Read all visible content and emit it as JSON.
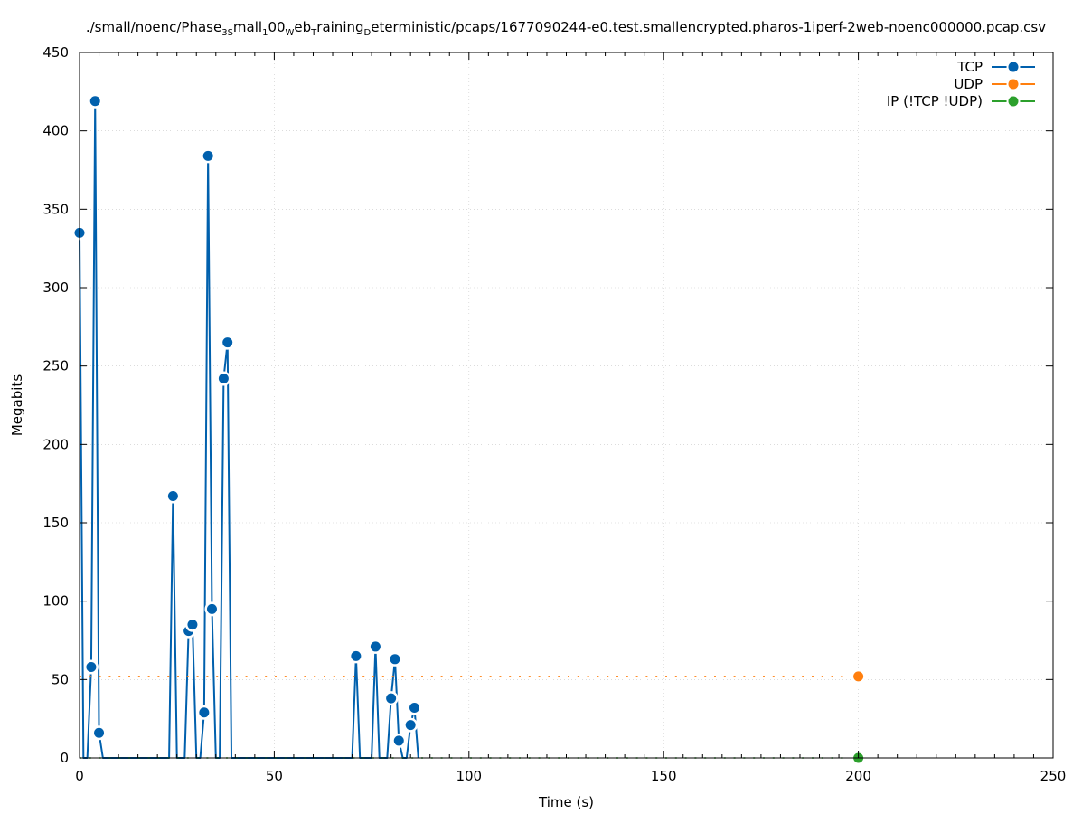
{
  "chart_data": {
    "type": "line",
    "title_parts": [
      {
        "text": "./small/noenc/Phase",
        "sub": false
      },
      {
        "text": "3S",
        "sub": true
      },
      {
        "text": "mall",
        "sub": false
      },
      {
        "text": "1",
        "sub": true
      },
      {
        "text": "00",
        "sub": false
      },
      {
        "text": "W",
        "sub": true
      },
      {
        "text": "eb",
        "sub": false
      },
      {
        "text": "T",
        "sub": true
      },
      {
        "text": "raining",
        "sub": false
      },
      {
        "text": "D",
        "sub": true
      },
      {
        "text": "eterministic/pcaps/1677090244-e0.test.smallencrypted.pharos-1iperf-2web-noenc000000.pcap.csv",
        "sub": false
      }
    ],
    "xlabel": "Time (s)",
    "ylabel": "Megabits",
    "xlim": [
      0,
      250
    ],
    "ylim": [
      0,
      450
    ],
    "xticks": [
      0,
      50,
      100,
      150,
      200,
      250
    ],
    "yticks": [
      0,
      50,
      100,
      150,
      200,
      250,
      300,
      350,
      400,
      450
    ],
    "grid": true,
    "legend_position": "top-right",
    "series": [
      {
        "name": "TCP",
        "color": "#0060ad",
        "style": "solid",
        "points": [
          [
            0,
            335
          ],
          [
            1,
            0
          ],
          [
            2,
            0
          ],
          [
            3,
            58
          ],
          [
            4,
            419
          ],
          [
            5,
            16
          ],
          [
            6,
            0
          ],
          [
            23,
            0
          ],
          [
            24,
            167
          ],
          [
            25,
            0
          ],
          [
            26,
            0
          ],
          [
            27,
            0
          ],
          [
            28,
            81
          ],
          [
            29,
            85
          ],
          [
            30,
            0
          ],
          [
            31,
            0
          ],
          [
            32,
            29
          ],
          [
            33,
            384
          ],
          [
            34,
            95
          ],
          [
            35,
            0
          ],
          [
            36,
            0
          ],
          [
            37,
            242
          ],
          [
            38,
            265
          ],
          [
            39,
            0
          ],
          [
            40,
            0
          ],
          [
            69,
            0
          ],
          [
            70,
            0
          ],
          [
            71,
            65
          ],
          [
            72,
            0
          ],
          [
            73,
            0
          ],
          [
            74,
            0
          ],
          [
            75,
            0
          ],
          [
            76,
            71
          ],
          [
            77,
            0
          ],
          [
            78,
            0
          ],
          [
            79,
            0
          ],
          [
            80,
            38
          ],
          [
            81,
            63
          ],
          [
            82,
            11
          ],
          [
            83,
            0
          ],
          [
            84,
            0
          ],
          [
            85,
            21
          ],
          [
            86,
            32
          ],
          [
            87,
            0
          ]
        ],
        "marker_x": [
          0,
          3,
          4,
          5,
          24,
          28,
          29,
          32,
          33,
          34,
          37,
          38,
          71,
          76,
          80,
          81,
          82,
          85,
          86
        ]
      },
      {
        "name": "UDP",
        "color": "#ff7f0e",
        "style": "dashed",
        "points": [
          [
            0,
            52
          ],
          [
            200,
            52
          ]
        ],
        "marker_x": [
          200
        ]
      },
      {
        "name": "IP (!TCP  !UDP)",
        "color": "#2ca02c",
        "style": "dashed",
        "points": [
          [
            0,
            0
          ],
          [
            200,
            0
          ]
        ],
        "marker_x": [
          200
        ]
      }
    ]
  }
}
